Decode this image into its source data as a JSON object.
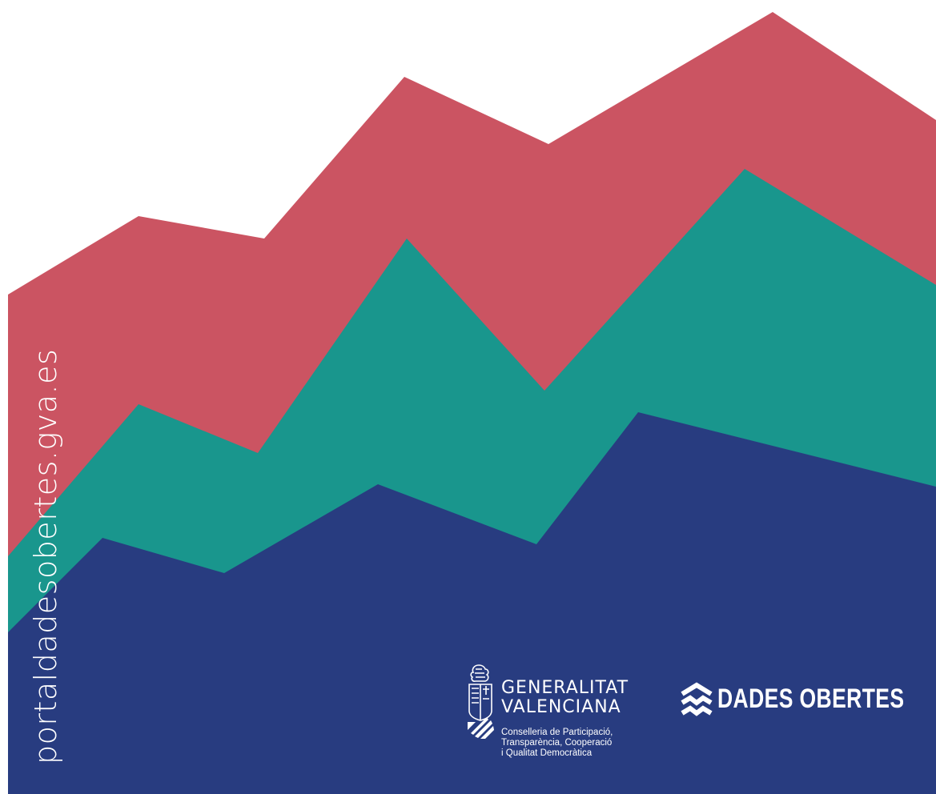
{
  "colors": {
    "background": "#ffffff",
    "red_band": "#cb5462",
    "teal_band": "#19968d",
    "blue_band": "#283c80",
    "text": "#ffffff"
  },
  "site_url": "portaldadesobertes.gva.es",
  "generalitat": {
    "name_line1": "GENERALITAT",
    "name_line2": "VALENCIANA",
    "department_line1": "Conselleria de Participació,",
    "department_line2": "Transparència, Cooperació",
    "department_line3": "i Qualitat Democràtica",
    "emblem_icon": "coat-of-arms-icon"
  },
  "dades_obertes": {
    "label": "DADES OBERTES",
    "icon": "stacked-chevrons-icon"
  }
}
